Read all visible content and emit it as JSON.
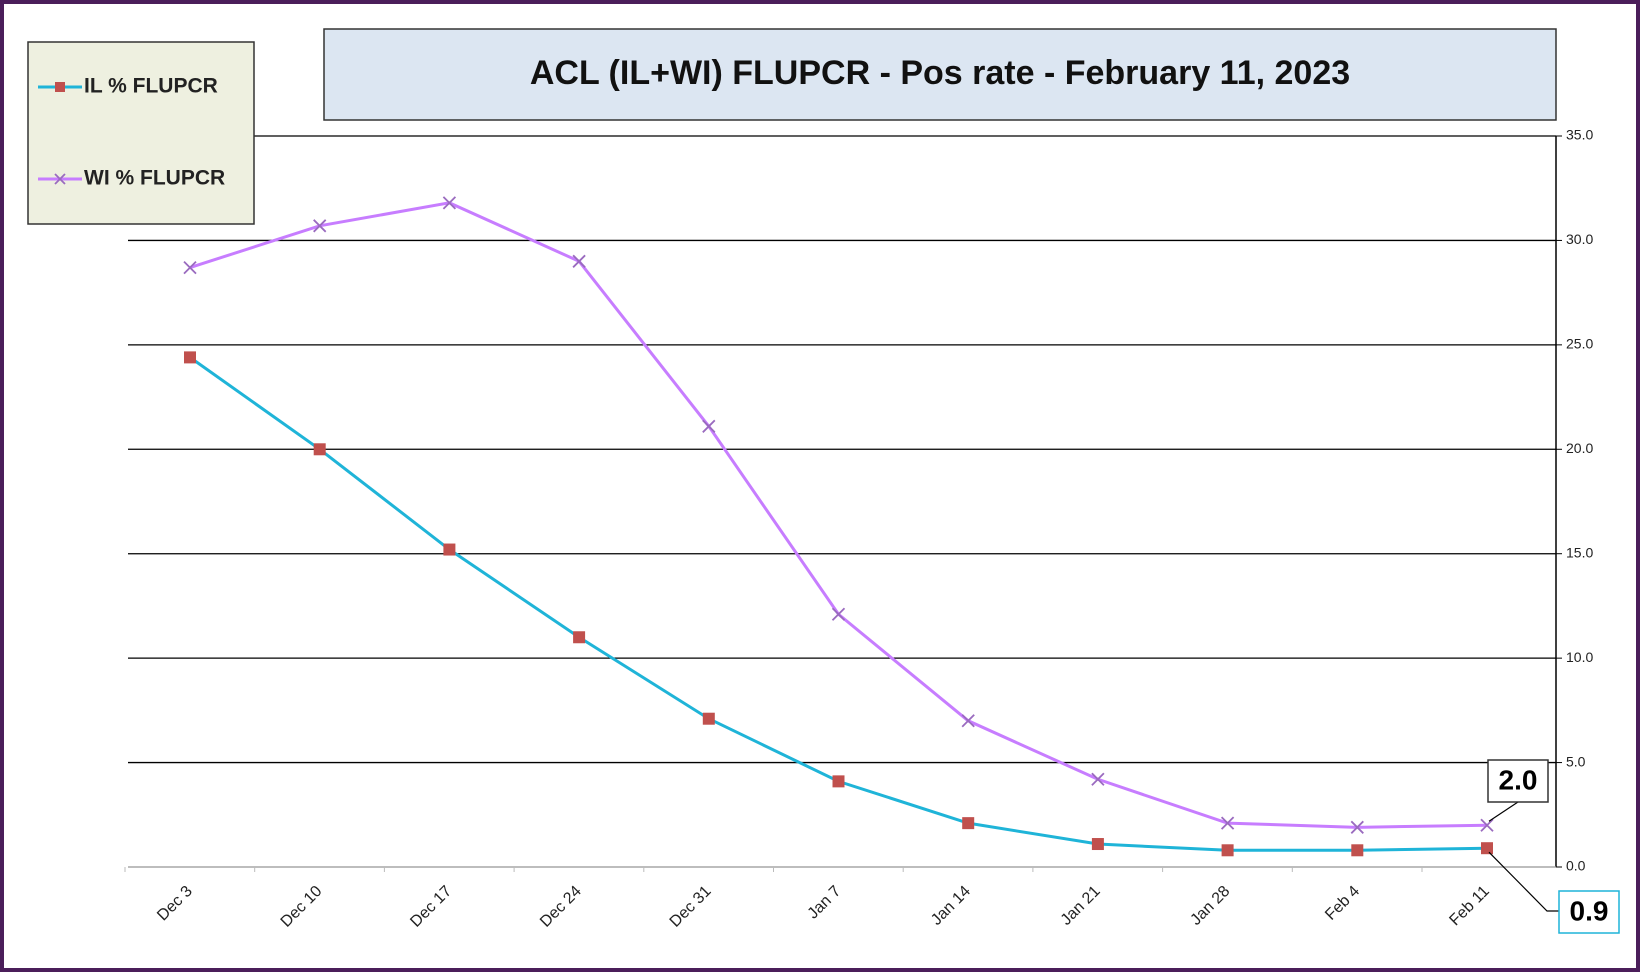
{
  "chart_data": {
    "type": "line",
    "title": "ACL (IL+WI) FLUPCR -  Pos rate  - February 11, 2023",
    "categories": [
      "Dec 3",
      "Dec 10",
      "Dec 17",
      "Dec 24",
      "Dec 31",
      "Jan 7",
      "Jan 14",
      "Jan 21",
      "Jan 28",
      "Feb 4",
      "Feb 11"
    ],
    "series": [
      {
        "name": "IL % FLUPCR",
        "color": "#1fb4d8",
        "marker_color": "#c0504d",
        "marker": "square",
        "values": [
          24.4,
          20.0,
          15.2,
          11.0,
          7.1,
          4.1,
          2.1,
          1.1,
          0.8,
          0.8,
          0.9
        ],
        "value_labels": [
          null,
          null,
          null,
          null,
          null,
          null,
          null,
          null,
          null,
          null,
          "0.9"
        ]
      },
      {
        "name": "WI % FLUPCR",
        "color": "#c77dff",
        "marker_color": "#9a6bbf",
        "marker": "x",
        "values": [
          28.7,
          30.7,
          31.8,
          29.0,
          21.1,
          12.1,
          7.0,
          4.2,
          2.1,
          1.9,
          2.0
        ],
        "value_labels": [
          null,
          null,
          null,
          null,
          null,
          null,
          null,
          null,
          null,
          null,
          "2.0"
        ]
      }
    ],
    "ylim": [
      0,
      35
    ],
    "yticks": [
      {
        "value": 0,
        "label": "0.0"
      },
      {
        "value": 5,
        "label": "5.0"
      },
      {
        "value": 10,
        "label": "10.0"
      },
      {
        "value": 15,
        "label": "15.0"
      },
      {
        "value": 20,
        "label": "20.0"
      },
      {
        "value": 25,
        "label": "25.0"
      },
      {
        "value": 30,
        "label": "30.0"
      },
      {
        "value": 35,
        "label": "35.0"
      }
    ],
    "grid": true,
    "legend": "upper left"
  }
}
